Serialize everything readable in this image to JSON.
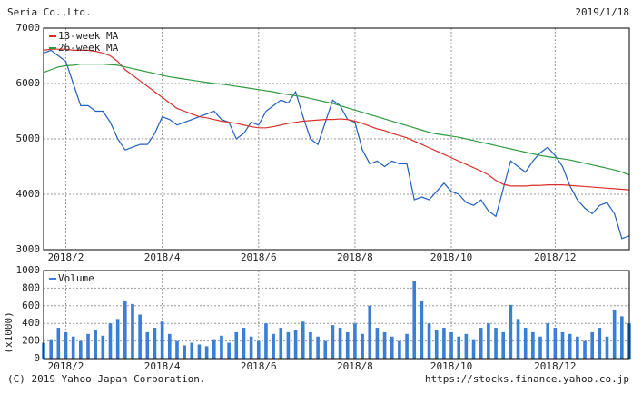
{
  "header": {
    "title": "Seria Co.,Ltd.",
    "date": "2019/1/18"
  },
  "footer": {
    "copyright": "(C) 2019 Yahoo Japan Corporation.",
    "url": "https://stocks.finance.yahoo.co.jp"
  },
  "chart_data": [
    {
      "type": "line",
      "grid": true,
      "xlim": [
        0,
        79
      ],
      "xticks": [
        {
          "value": 3,
          "label": "2018/2"
        },
        {
          "value": 16,
          "label": "2018/4"
        },
        {
          "value": 29,
          "label": "2018/6"
        },
        {
          "value": 42,
          "label": "2018/8"
        },
        {
          "value": 55,
          "label": "2018/10"
        },
        {
          "value": 69,
          "label": "2018/12"
        }
      ],
      "ylim": [
        3000,
        7000
      ],
      "yticks": [
        3000,
        4000,
        5000,
        6000,
        7000
      ],
      "series": [
        {
          "color": "#1f5fbf",
          "values": [
            6550,
            6600,
            6500,
            6400,
            6000,
            5600,
            5600,
            5500,
            5500,
            5300,
            5000,
            4800,
            4850,
            4900,
            4900,
            5100,
            5400,
            5350,
            5250,
            5300,
            5350,
            5400,
            5450,
            5500,
            5350,
            5300,
            5000,
            5100,
            5300,
            5250,
            5500,
            5600,
            5700,
            5650,
            5850,
            5400,
            5000,
            4900,
            5300,
            5700,
            5600,
            5350,
            5300,
            4800,
            4550,
            4600,
            4500,
            4600,
            4550,
            4550,
            3900,
            3950,
            3900,
            4050,
            4200,
            4050,
            4000,
            3850,
            3800,
            3900,
            3700,
            3600,
            4100,
            4600,
            4500,
            4400,
            4600,
            4750,
            4850,
            4700,
            4500,
            4150,
            3900,
            3750,
            3650,
            3800,
            3850,
            3650,
            3200,
            3250
          ]
        },
        {
          "name": "13-week MA",
          "color": "#d9302a",
          "values": [
            6600,
            6620,
            6620,
            6620,
            6600,
            6600,
            6600,
            6580,
            6550,
            6500,
            6400,
            6250,
            6150,
            6050,
            5950,
            5850,
            5750,
            5650,
            5550,
            5500,
            5450,
            5400,
            5380,
            5350,
            5320,
            5300,
            5280,
            5250,
            5220,
            5200,
            5200,
            5220,
            5250,
            5280,
            5300,
            5320,
            5330,
            5340,
            5350,
            5350,
            5360,
            5350,
            5320,
            5280,
            5230,
            5180,
            5150,
            5100,
            5060,
            5020,
            4960,
            4900,
            4840,
            4780,
            4720,
            4660,
            4600,
            4540,
            4480,
            4420,
            4350,
            4250,
            4180,
            4150,
            4150,
            4150,
            4160,
            4160,
            4170,
            4170,
            4170,
            4160,
            4150,
            4140,
            4130,
            4120,
            4110,
            4100,
            4090,
            4080
          ]
        },
        {
          "name": "26-week MA",
          "color": "#2e9a3e",
          "values": [
            6200,
            6250,
            6300,
            6320,
            6330,
            6350,
            6350,
            6350,
            6350,
            6340,
            6330,
            6300,
            6270,
            6240,
            6210,
            6180,
            6150,
            6120,
            6100,
            6080,
            6060,
            6040,
            6020,
            6000,
            5990,
            5970,
            5950,
            5930,
            5910,
            5890,
            5870,
            5850,
            5820,
            5800,
            5780,
            5760,
            5730,
            5700,
            5670,
            5640,
            5600,
            5560,
            5520,
            5480,
            5440,
            5400,
            5360,
            5320,
            5280,
            5240,
            5200,
            5160,
            5120,
            5090,
            5070,
            5050,
            5030,
            5000,
            4970,
            4940,
            4910,
            4880,
            4850,
            4820,
            4790,
            4760,
            4730,
            4700,
            4680,
            4660,
            4640,
            4620,
            4590,
            4560,
            4530,
            4500,
            4470,
            4440,
            4400,
            4350
          ]
        }
      ]
    },
    {
      "type": "bar",
      "grid": true,
      "y_label": "(x1000)",
      "xlim": [
        0,
        79
      ],
      "xticks": [
        {
          "value": 3,
          "label": "2018/2"
        },
        {
          "value": 16,
          "label": "2018/4"
        },
        {
          "value": 29,
          "label": "2018/6"
        },
        {
          "value": 42,
          "label": "2018/8"
        },
        {
          "value": 55,
          "label": "2018/10"
        },
        {
          "value": 69,
          "label": "2018/12"
        }
      ],
      "ylim": [
        0,
        1000
      ],
      "yticks": [
        0,
        200,
        400,
        600,
        800,
        1000
      ],
      "series": [
        {
          "name": "Volume",
          "color": "#3a7fd5",
          "values": [
            180,
            220,
            350,
            300,
            250,
            200,
            280,
            320,
            260,
            400,
            450,
            650,
            620,
            500,
            300,
            350,
            420,
            280,
            200,
            150,
            180,
            160,
            140,
            220,
            260,
            180,
            300,
            350,
            250,
            200,
            400,
            280,
            350,
            300,
            320,
            420,
            300,
            250,
            200,
            380,
            350,
            300,
            400,
            280,
            600,
            350,
            300,
            250,
            200,
            280,
            880,
            650,
            400,
            320,
            350,
            300,
            250,
            280,
            220,
            350,
            400,
            350,
            300,
            610,
            450,
            350,
            300,
            250,
            400,
            350,
            300,
            280,
            250,
            200,
            300,
            350,
            250,
            550,
            480,
            400
          ]
        }
      ]
    }
  ]
}
